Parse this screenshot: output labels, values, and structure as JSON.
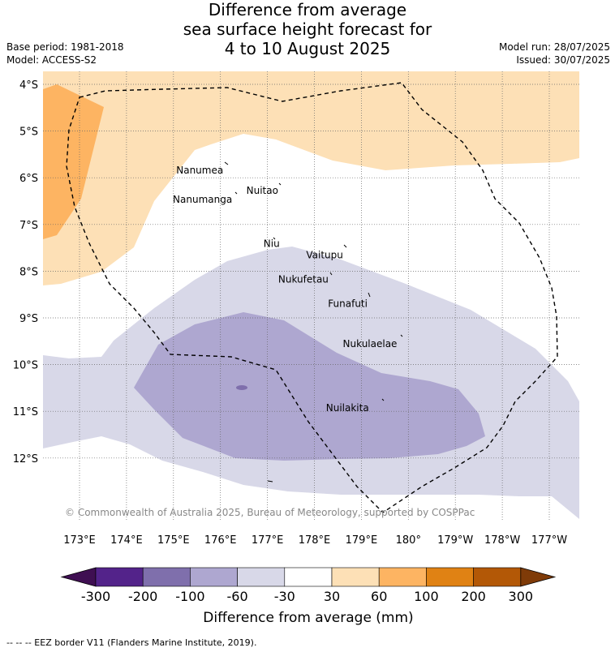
{
  "title": {
    "line1": "Difference from average",
    "line2": "sea surface height forecast for",
    "line3": "4 to 10 August 2025"
  },
  "meta_left": {
    "base_period": "Base period: 1981-2018",
    "model": "Model: ACCESS-S2"
  },
  "meta_right": {
    "model_run": "Model run: 28/07/2025",
    "issued": "Issued: 30/07/2025"
  },
  "axes": {
    "lat_labels": [
      "4°S",
      "5°S",
      "6°S",
      "7°S",
      "8°S",
      "9°S",
      "10°S",
      "11°S",
      "12°S"
    ],
    "lat_values": [
      -4,
      -5,
      -6,
      -7,
      -8,
      -9,
      -10,
      -11,
      -12
    ],
    "lon_labels": [
      "173°E",
      "174°E",
      "175°E",
      "176°E",
      "177°E",
      "178°E",
      "179°E",
      "180°",
      "179°W",
      "178°W",
      "177°W"
    ],
    "lon_values": [
      173,
      174,
      175,
      176,
      177,
      178,
      179,
      180,
      181,
      182,
      183
    ],
    "lon_range": [
      172.25,
      183.7
    ],
    "lat_range": [
      -13.3,
      -3.75
    ]
  },
  "places": [
    {
      "name": "Nanumea",
      "lon": 176.13,
      "lat": -5.67
    },
    {
      "name": "Nuitao",
      "lon": 177.3,
      "lat": -6.1
    },
    {
      "name": "Nanumanga",
      "lon": 176.32,
      "lat": -6.29
    },
    {
      "name": "Niu",
      "lon": 177.33,
      "lat": -7.24
    },
    {
      "name": "Vaitupu",
      "lon": 178.68,
      "lat": -7.48
    },
    {
      "name": "Nukufetau",
      "lon": 178.37,
      "lat": -8.0
    },
    {
      "name": "Funafuti",
      "lon": 179.2,
      "lat": -8.52
    },
    {
      "name": "Nukulaelae",
      "lon": 179.83,
      "lat": -9.38
    },
    {
      "name": "Nuilakita",
      "lon": 179.23,
      "lat": -10.75
    }
  ],
  "copyright": "© Commonwealth of Australia 2025, Bureau of Meteorology, supported by COSPPac",
  "colorbar": {
    "ticks": [
      "-300",
      "-200",
      "-100",
      "-60",
      "-30",
      "30",
      "60",
      "100",
      "200",
      "300"
    ],
    "colors": [
      "#3f0f52",
      "#53238a",
      "#7f6fac",
      "#aea7d0",
      "#d8d8e8",
      "#ffffff",
      "#fde0b6",
      "#fdb462",
      "#e08214",
      "#b35806",
      "#7f3b08"
    ],
    "label": "Difference from average (mm)"
  },
  "fills": {
    "band_neg60": "#d8d8e8",
    "band_neg100": "#aea7d0",
    "band_neg200": "#7f6fac",
    "band_30": "#fde0b6",
    "band_60": "#fdb462"
  },
  "footer": "--  --  -- EEZ border V11 (Flanders Marine Institute, 2019)."
}
